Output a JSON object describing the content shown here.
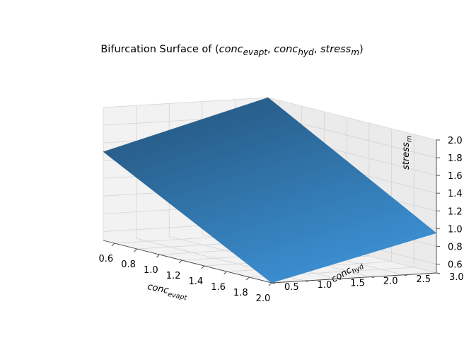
{
  "chart_data": {
    "type": "surface3d",
    "title": {
      "prefix": "Bifurcation Surface of (",
      "vars": [
        {
          "base": "conc",
          "sub": "evapt"
        },
        {
          "base": "conc",
          "sub": "hyd"
        },
        {
          "base": "stress",
          "sub": "m"
        }
      ],
      "suffix": ")"
    },
    "xlabel": {
      "base": "conc",
      "sub": "evapt"
    },
    "ylabel": {
      "base": "conc",
      "sub": "hyd"
    },
    "zlabel": {
      "base": "stress",
      "sub": "m"
    },
    "xlim": [
      0.5,
      2.0
    ],
    "ylim": [
      0.5,
      3.0
    ],
    "zlim": [
      0.5,
      2.0
    ],
    "xticks": [
      "0.6",
      "0.8",
      "1.0",
      "1.2",
      "1.4",
      "1.6",
      "1.8",
      "2.0"
    ],
    "yticks": [
      "0.5",
      "1.0",
      "1.5",
      "2.0",
      "2.5",
      "3.0"
    ],
    "zticks": [
      "0.6",
      "0.8",
      "1.0",
      "1.2",
      "1.4",
      "1.6",
      "1.8",
      "2.0"
    ],
    "surface": {
      "color": "#3784c2",
      "corners": [
        {
          "x": 0.5,
          "y": 0.5,
          "z": 1.5
        },
        {
          "x": 0.5,
          "y": 3.0,
          "z": 2.0
        },
        {
          "x": 2.0,
          "y": 3.0,
          "z": 0.95
        },
        {
          "x": 2.0,
          "y": 0.5,
          "z": 0.5
        }
      ]
    },
    "grid": true
  }
}
